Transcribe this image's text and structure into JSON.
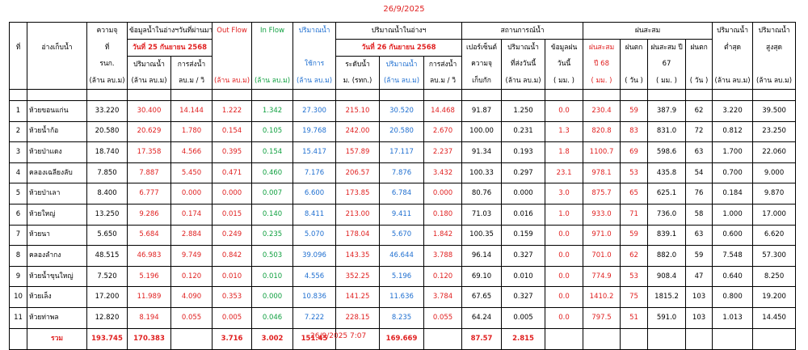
{
  "report_date": "26/9/2025",
  "footer_timestamp": "26/9/2025 7:07",
  "header": {
    "no": "ที่",
    "reservoir": "อ่างเก็บน้ำ",
    "capacity": [
      "ความจุ",
      "ที่",
      "รนก.",
      "(ล้าน ลบ.ม)"
    ],
    "prev_group": "ข้อมูลน้ำในอ่างฯวันที่ผ่านมา",
    "prev_date": "วันที่ 25 กันยายน 2568",
    "prev_volume": [
      "ปริมาณน้ำ",
      "(ล้าน ลบ.ม)"
    ],
    "prev_release": [
      "การส่งน้ำ",
      "ลบ.ม / วิ"
    ],
    "outflow": [
      "Out Flow",
      "(ล้าน ลบ.ม)"
    ],
    "inflow": [
      "In Flow",
      "(ล้าน ลบ.ม)"
    ],
    "usable": [
      "ปริมาณน้ำ",
      "ใช้การ",
      "(ล้าน ลบ.ม)"
    ],
    "cur_group": "ปริมาณน้ำในอ่างฯ",
    "cur_date": "วันที่ 26 กันยายน 2568",
    "cur_level": [
      "ระดับน้ำ",
      "ม. (รทก.)"
    ],
    "cur_volume": [
      "ปริมาณน้ำ",
      "(ล้าน ลบ.ม)"
    ],
    "cur_release": [
      "การส่งน้ำ",
      "ลบ.ม / วิ"
    ],
    "status_group": "สถานการณ์น้ำ",
    "percent": [
      "เปอร์เซ็นต์",
      "ความจุ",
      "เก็บกัก"
    ],
    "released_today": [
      "ปริมาณน้ำ",
      "ที่ส่งวันนี้",
      "(ล้าน ลบ.ม)"
    ],
    "rain_today": [
      "ข้อมูลฝน",
      "วันนี้",
      "( มม. )"
    ],
    "rain_group": "ฝนสะสม",
    "rain68": [
      "ฝนสะสม",
      "ปี 68",
      "( มม. )"
    ],
    "rain68_days": [
      "ฝนตก",
      "( วัน )"
    ],
    "rain67": [
      "ฝนสะสม ปี",
      "67",
      "( มม. )"
    ],
    "rain67_days": [
      "ฝนตก",
      "( วัน )"
    ],
    "min": [
      "ปริมาณน้ำ",
      "ต่ำสุด",
      "(ล้าน ลบ.ม)"
    ],
    "max": [
      "ปริมาณน้ำ",
      "สูงสุด",
      "(ล้าน ลบ.ม)"
    ]
  },
  "rows": [
    {
      "no": "1",
      "name": "ห้วยขอนแก่น",
      "capacity": "33.220",
      "prev_volume": "30.400",
      "prev_release": "14.144",
      "outflow": "1.222",
      "inflow": "1.342",
      "usable": "27.300",
      "level": "215.10",
      "cur_volume": "30.520",
      "cur_release": "14.468",
      "percent": "91.87",
      "released_today": "1.250",
      "rain_today": "0.0",
      "rain68": "230.4",
      "rain68_days": "59",
      "rain67": "387.9",
      "rain67_days": "62",
      "min": "3.220",
      "max": "39.500"
    },
    {
      "no": "2",
      "name": "ห้วยน้ำก้อ",
      "capacity": "20.580",
      "prev_volume": "20.629",
      "prev_release": "1.780",
      "outflow": "0.154",
      "inflow": "0.105",
      "usable": "19.768",
      "level": "242.00",
      "cur_volume": "20.580",
      "cur_release": "2.670",
      "percent": "100.00",
      "released_today": "0.231",
      "rain_today": "1.3",
      "rain68": "820.8",
      "rain68_days": "83",
      "rain67": "831.0",
      "rain67_days": "72",
      "min": "0.812",
      "max": "23.250"
    },
    {
      "no": "3",
      "name": "ห้วยป่าแดง",
      "capacity": "18.740",
      "prev_volume": "17.358",
      "prev_release": "4.566",
      "outflow": "0.395",
      "inflow": "0.154",
      "usable": "15.417",
      "level": "157.89",
      "cur_volume": "17.117",
      "cur_release": "2.237",
      "percent": "91.34",
      "released_today": "0.193",
      "rain_today": "1.8",
      "rain68": "1100.7",
      "rain68_days": "69",
      "rain67": "598.6",
      "rain67_days": "63",
      "min": "1.700",
      "max": "22.060"
    },
    {
      "no": "4",
      "name": "คลองเฉลียงลับ",
      "capacity": "7.850",
      "prev_volume": "7.887",
      "prev_release": "5.450",
      "outflow": "0.471",
      "inflow": "0.460",
      "usable": "7.176",
      "level": "206.57",
      "cur_volume": "7.876",
      "cur_release": "3.432",
      "percent": "100.33",
      "released_today": "0.297",
      "rain_today": "23.1",
      "rain68": "978.1",
      "rain68_days": "53",
      "rain67": "435.8",
      "rain67_days": "54",
      "min": "0.700",
      "max": "9.000"
    },
    {
      "no": "5",
      "name": "ห้วยป่าเลา",
      "capacity": "8.400",
      "prev_volume": "6.777",
      "prev_release": "0.000",
      "outflow": "0.000",
      "inflow": "0.007",
      "usable": "6.600",
      "level": "173.85",
      "cur_volume": "6.784",
      "cur_release": "0.000",
      "percent": "80.76",
      "released_today": "0.000",
      "rain_today": "3.0",
      "rain68": "875.7",
      "rain68_days": "65",
      "rain67": "625.1",
      "rain67_days": "76",
      "min": "0.184",
      "max": "9.870"
    },
    {
      "no": "6",
      "name": "ห้วยใหญ่",
      "capacity": "13.250",
      "prev_volume": "9.286",
      "prev_release": "0.174",
      "outflow": "0.015",
      "inflow": "0.140",
      "usable": "8.411",
      "level": "213.00",
      "cur_volume": "9.411",
      "cur_release": "0.180",
      "percent": "71.03",
      "released_today": "0.016",
      "rain_today": "1.0",
      "rain68": "933.0",
      "rain68_days": "71",
      "rain67": "736.0",
      "rain67_days": "58",
      "min": "1.000",
      "max": "17.000"
    },
    {
      "no": "7",
      "name": "ห้วยนา",
      "capacity": "5.650",
      "prev_volume": "5.684",
      "prev_release": "2.884",
      "outflow": "0.249",
      "inflow": "0.235",
      "usable": "5.070",
      "level": "178.04",
      "cur_volume": "5.670",
      "cur_release": "1.842",
      "percent": "100.35",
      "released_today": "0.159",
      "rain_today": "0.0",
      "rain68": "971.0",
      "rain68_days": "59",
      "rain67": "839.1",
      "rain67_days": "63",
      "min": "0.600",
      "max": "6.620"
    },
    {
      "no": "8",
      "name": "คลองลำกง",
      "capacity": "48.515",
      "prev_volume": "46.983",
      "prev_release": "9.749",
      "outflow": "0.842",
      "inflow": "0.503",
      "usable": "39.096",
      "level": "143.35",
      "cur_volume": "46.644",
      "cur_release": "3.788",
      "percent": "96.14",
      "released_today": "0.327",
      "rain_today": "0.0",
      "rain68": "701.0",
      "rain68_days": "62",
      "rain67": "882.0",
      "rain67_days": "59",
      "min": "7.548",
      "max": "57.300"
    },
    {
      "no": "9",
      "name": "ห้วยน้ำขุนใหญ่",
      "capacity": "7.520",
      "prev_volume": "5.196",
      "prev_release": "0.120",
      "outflow": "0.010",
      "inflow": "0.010",
      "usable": "4.556",
      "level": "352.25",
      "cur_volume": "5.196",
      "cur_release": "0.120",
      "percent": "69.10",
      "released_today": "0.010",
      "rain_today": "0.0",
      "rain68": "774.9",
      "rain68_days": "53",
      "rain67": "908.4",
      "rain67_days": "47",
      "min": "0.640",
      "max": "8.250"
    },
    {
      "no": "10",
      "name": "ห้วยเล็ง",
      "capacity": "17.200",
      "prev_volume": "11.989",
      "prev_release": "4.090",
      "outflow": "0.353",
      "inflow": "0.000",
      "usable": "10.836",
      "level": "141.25",
      "cur_volume": "11.636",
      "cur_release": "3.784",
      "percent": "67.65",
      "released_today": "0.327",
      "rain_today": "0.0",
      "rain68": "1410.2",
      "rain68_days": "75",
      "rain67": "1815.2",
      "rain67_days": "103",
      "min": "0.800",
      "max": "19.200"
    },
    {
      "no": "11",
      "name": "ห้วยท่าพล",
      "capacity": "12.820",
      "prev_volume": "8.194",
      "prev_release": "0.055",
      "outflow": "0.005",
      "inflow": "0.046",
      "usable": "7.222",
      "level": "228.15",
      "cur_volume": "8.235",
      "cur_release": "0.055",
      "percent": "64.24",
      "released_today": "0.005",
      "rain_today": "0.0",
      "rain68": "797.5",
      "rain68_days": "51",
      "rain67": "591.0",
      "rain67_days": "103",
      "min": "1.013",
      "max": "14.450"
    }
  ],
  "totals": {
    "label": "รวม",
    "capacity": "193.745",
    "prev_volume": "170.383",
    "outflow": "3.716",
    "inflow": "3.002",
    "usable": "151.45",
    "cur_volume": "169.669",
    "percent": "87.57",
    "released_today": "2.815"
  }
}
